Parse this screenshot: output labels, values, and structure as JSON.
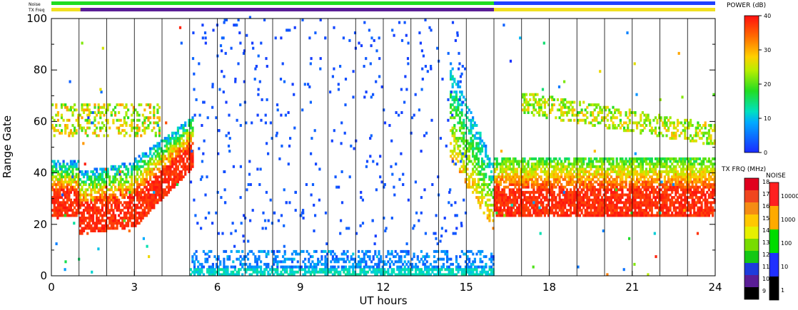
{
  "header": {
    "noise_label": "Noise",
    "txfreq_label": "TX Freq"
  },
  "chart_data": {
    "type": "heatmap",
    "xlabel": "UT hours",
    "ylabel": "Range Gate",
    "x_ticks": [
      "0",
      "3",
      "6",
      "9",
      "12",
      "15",
      "18",
      "21",
      "24"
    ],
    "y_ticks": [
      "0",
      "20",
      "40",
      "60",
      "80",
      "100"
    ],
    "xlim": [
      0,
      24
    ],
    "ylim": [
      0,
      100
    ],
    "vertical_gridlines_hours": [
      1,
      2,
      3,
      4,
      5,
      6,
      7,
      8,
      9,
      10,
      11,
      12,
      13,
      14,
      15,
      16,
      17,
      18,
      19,
      20,
      21,
      22,
      23
    ],
    "power_colorbar": {
      "title": "POWER (dB)",
      "ticks": [
        "0",
        "10",
        "20",
        "30",
        "40"
      ],
      "range": [
        0,
        40
      ]
    },
    "txfreq_legend": {
      "title": "TX FRQ (MHz)",
      "labels": [
        "18",
        "17",
        "16",
        "15",
        "14",
        "13",
        "12",
        "11",
        "10",
        "9"
      ],
      "colors": [
        "#e0001e",
        "#f0461e",
        "#f58c14",
        "#ffc800",
        "#e6f000",
        "#78dc00",
        "#14c814",
        "#1e3cdc",
        "#5a1e96",
        "#000000"
      ]
    },
    "noise_legend": {
      "title": "NOISE",
      "labels": [
        "10000",
        "1000",
        "100",
        "10",
        "1"
      ],
      "colors": [
        "#ff2020",
        "#ffaa00",
        "#00dd00",
        "#2030ff",
        "#000000"
      ]
    },
    "noise_bar": [
      {
        "from": 0,
        "to": 16,
        "color": "#20dd20"
      },
      {
        "from": 16,
        "to": 24,
        "color": "#2040ff"
      }
    ],
    "txfreq_bar": [
      {
        "from": 0,
        "to": 1.05,
        "color": "#f0e020"
      },
      {
        "from": 1.05,
        "to": 16,
        "color": "#5a1e96"
      },
      {
        "from": 16,
        "to": 24,
        "color": "#f0e020"
      }
    ],
    "series_description": [
      {
        "name": "night_ground_scatter",
        "hours": [
          5,
          16
        ],
        "gates": [
          0,
          9
        ],
        "level": "low"
      },
      {
        "name": "day_band_a",
        "hours": [
          0,
          5
        ],
        "gates": [
          16,
          45
        ],
        "level": "high"
      },
      {
        "name": "day_band_b",
        "hours": [
          16,
          24
        ],
        "gates": [
          23,
          45
        ],
        "level": "high"
      },
      {
        "name": "upper_band",
        "hours": [
          17,
          24
        ],
        "gates": [
          53,
          70
        ],
        "level": "medium"
      }
    ]
  }
}
